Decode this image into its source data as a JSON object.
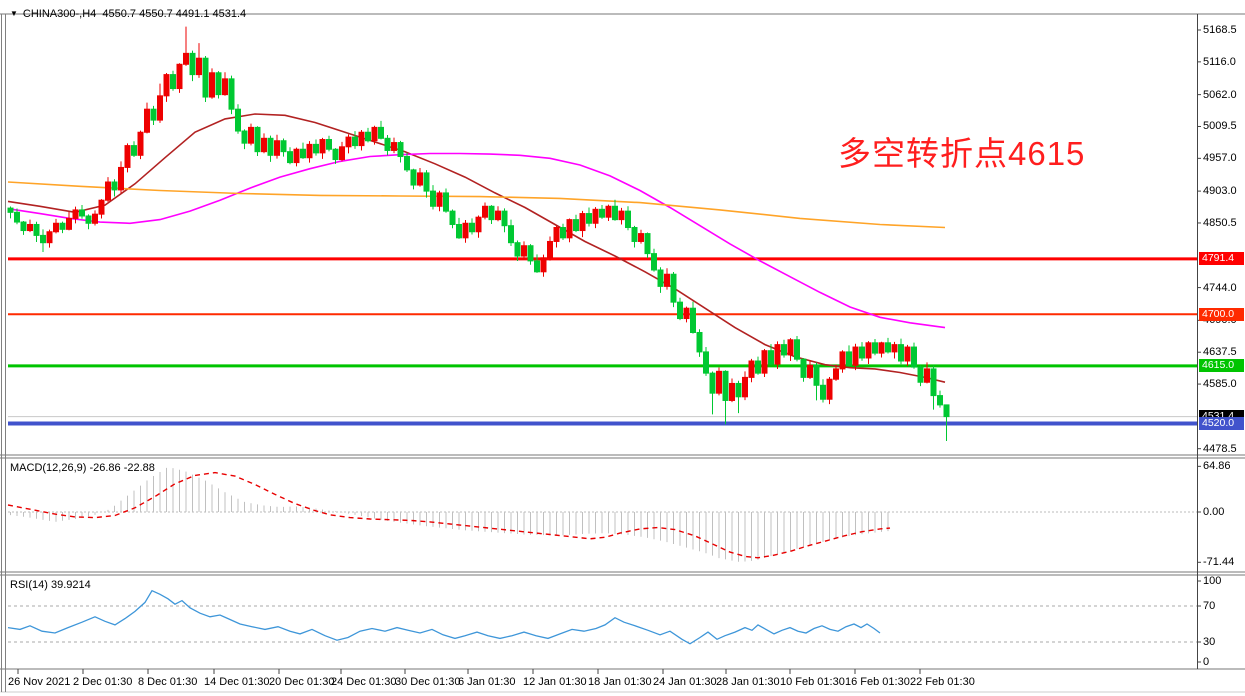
{
  "header": {
    "symbol_period": "CHINA300-,H4",
    "ohlc": "4550.7 4550.7 4491.1 4531.4",
    "dropdown_icon": "▼"
  },
  "annotation": {
    "text": "多空转折点4615",
    "color": "#FF1E1E"
  },
  "macd": {
    "label": "MACD(12,26,9) -26.86 -22.88"
  },
  "rsi": {
    "label": "RSI(14) 39.9214"
  },
  "colors": {
    "up_candle": "#EE0000",
    "down_candle": "#00C832",
    "ma_fast": "#B22222",
    "ma_mid": "#FF00FF",
    "ma_slow": "#FFA428",
    "macd_histogram": "#C0C0C0",
    "macd_signal": "#E80000",
    "rsi_line": "#3E96D9",
    "level_red": "#FF0000",
    "level_red2": "#FF2A00",
    "level_green": "#00C400",
    "level_blue": "#4153CC",
    "price_line_gray": "#C8C8C8",
    "badge_black": "#000000",
    "frame": "#777777",
    "axis_text": "#000000"
  },
  "chart_data": {
    "type": "candlestick",
    "title": "CHINA300-,H4",
    "symbol": "CHINA300-",
    "timeframe": "H4",
    "convention": "chinese (red=bullish, green=bearish)",
    "last_bar": {
      "open": 4550.7,
      "high": 4550.7,
      "low": 4491.1,
      "close": 4531.4
    },
    "first_open": 4875,
    "closes": [
      4868,
      4852,
      4838,
      4848,
      4830,
      4818,
      4836,
      4850,
      4840,
      4858,
      4872,
      4862,
      4850,
      4865,
      4888,
      4918,
      4905,
      4942,
      4978,
      4962,
      5000,
      5038,
      5020,
      5060,
      5095,
      5072,
      5112,
      5130,
      5095,
      5122,
      5058,
      5098,
      5062,
      5088,
      5038,
      5002,
      4982,
      5008,
      4968,
      4990,
      4962,
      4986,
      4968,
      4950,
      4972,
      4958,
      4980,
      4966,
      4988,
      4972,
      4955,
      4976,
      4992,
      4978,
      5000,
      4986,
      5008,
      4990,
      4970,
      4983,
      4960,
      4938,
      4913,
      4933,
      4903,
      4878,
      4900,
      4870,
      4848,
      4826,
      4850,
      4836,
      4860,
      4878,
      4856,
      4870,
      4846,
      4818,
      4796,
      4813,
      4788,
      4770,
      4793,
      4820,
      4843,
      4826,
      4856,
      4838,
      4866,
      4850,
      4873,
      4860,
      4878,
      4856,
      4870,
      4843,
      4820,
      4833,
      4800,
      4773,
      4746,
      4766,
      4720,
      4693,
      4710,
      4670,
      4638,
      4603,
      4570,
      4606,
      4558,
      4586,
      4564,
      4596,
      4623,
      4603,
      4640,
      4618,
      4650,
      4633,
      4658,
      4626,
      4596,
      4616,
      4583,
      4560,
      4593,
      4610,
      4638,
      4616,
      4646,
      4628,
      4653,
      4636,
      4653,
      4638,
      4650,
      4623,
      4646,
      4613,
      4588,
      4610,
      4566,
      4550.7
    ],
    "wick_pattern": [
      3,
      7,
      2,
      9,
      5,
      11,
      4,
      8,
      3,
      12,
      6,
      9
    ],
    "high_boost": {
      "23": 12,
      "27": 36,
      "29": 15
    },
    "low_boost": {
      "5": 10,
      "108": 25,
      "110": 32,
      "112": 16,
      "124": 14,
      "142": 15
    },
    "y_axis_ticks": [
      5168.5,
      5116.0,
      5062.0,
      5009.5,
      4957.0,
      4903.0,
      4850.5,
      4744.0,
      4690.0,
      4637.5,
      4585.0,
      4478.5
    ],
    "ylim": [
      4478.5,
      5168.5
    ],
    "x_axis_labels": [
      "26 Nov 2021",
      "2 Dec 01:30",
      "8 Dec 01:30",
      "14 Dec 01:30",
      "20 Dec 01:30",
      "24 Dec 01:30",
      "30 Dec 01:30",
      "6 Jan 01:30",
      "12 Jan 01:30",
      "18 Jan 01:30",
      "24 Jan 01:30",
      "28 Jan 01:30",
      "10 Feb 01:30",
      "16 Feb 01:30",
      "22 Feb 01:30"
    ],
    "horizontal_levels": [
      {
        "price": 4791.4,
        "label": "4791.4",
        "line_color": "#FF0000",
        "badge_color": "#FF0000",
        "width": 3
      },
      {
        "price": 4700.0,
        "label": "4700.0",
        "line_color": "#FF2A00",
        "badge_color": "#FF2A00",
        "width": 2
      },
      {
        "price": 4615.0,
        "label": "4615.0",
        "line_color": "#00C400",
        "badge_color": "#00C400",
        "width": 3
      },
      {
        "price": 4531.4,
        "label": "4531.4",
        "line_color": "#C8C8C8",
        "badge_color": "#000000",
        "width": 1
      },
      {
        "price": 4520.0,
        "label": "4520.0",
        "line_color": "#4153CC",
        "badge_color": "#4153CC",
        "width": 4
      }
    ],
    "moving_averages": [
      {
        "name": "fast-ma",
        "color": "#B22222",
        "points": [
          [
            8,
            4886
          ],
          [
            40,
            4878
          ],
          [
            75,
            4868
          ],
          [
            105,
            4880
          ],
          [
            135,
            4915
          ],
          [
            165,
            4958
          ],
          [
            195,
            5000
          ],
          [
            225,
            5022
          ],
          [
            255,
            5030
          ],
          [
            285,
            5028
          ],
          [
            315,
            5016
          ],
          [
            345,
            5000
          ],
          [
            375,
            4984
          ],
          [
            405,
            4968
          ],
          [
            435,
            4948
          ],
          [
            465,
            4926
          ],
          [
            495,
            4900
          ],
          [
            525,
            4876
          ],
          [
            555,
            4848
          ],
          [
            585,
            4820
          ],
          [
            615,
            4796
          ],
          [
            645,
            4770
          ],
          [
            675,
            4742
          ],
          [
            705,
            4710
          ],
          [
            735,
            4678
          ],
          [
            765,
            4650
          ],
          [
            795,
            4630
          ],
          [
            825,
            4617
          ],
          [
            850,
            4612
          ],
          [
            875,
            4610
          ],
          [
            900,
            4604
          ],
          [
            925,
            4596
          ],
          [
            945,
            4588
          ]
        ]
      },
      {
        "name": "mid-ma",
        "color": "#FF00FF",
        "points": [
          [
            8,
            4874
          ],
          [
            40,
            4866
          ],
          [
            70,
            4858
          ],
          [
            100,
            4852
          ],
          [
            130,
            4850
          ],
          [
            160,
            4856
          ],
          [
            190,
            4870
          ],
          [
            220,
            4888
          ],
          [
            250,
            4908
          ],
          [
            280,
            4926
          ],
          [
            310,
            4940
          ],
          [
            340,
            4952
          ],
          [
            370,
            4960
          ],
          [
            400,
            4963
          ],
          [
            430,
            4965
          ],
          [
            460,
            4965
          ],
          [
            490,
            4964
          ],
          [
            520,
            4962
          ],
          [
            550,
            4957
          ],
          [
            580,
            4946
          ],
          [
            610,
            4928
          ],
          [
            640,
            4904
          ],
          [
            670,
            4876
          ],
          [
            700,
            4846
          ],
          [
            730,
            4816
          ],
          [
            760,
            4788
          ],
          [
            790,
            4762
          ],
          [
            820,
            4736
          ],
          [
            850,
            4712
          ],
          [
            880,
            4695
          ],
          [
            910,
            4686
          ],
          [
            945,
            4678
          ]
        ]
      },
      {
        "name": "slow-ma",
        "color": "#FFA428",
        "points": [
          [
            8,
            4918
          ],
          [
            80,
            4911
          ],
          [
            160,
            4904
          ],
          [
            240,
            4899
          ],
          [
            320,
            4896
          ],
          [
            400,
            4895
          ],
          [
            480,
            4894
          ],
          [
            560,
            4891
          ],
          [
            640,
            4884
          ],
          [
            720,
            4872
          ],
          [
            800,
            4858
          ],
          [
            880,
            4848
          ],
          [
            945,
            4843
          ]
        ]
      }
    ],
    "macd": {
      "params": "12,26,9",
      "main_value": -26.86,
      "signal_value": -22.88,
      "axis_labels": [
        "64.86",
        "0.00",
        "-71.44"
      ],
      "axis_values": [
        64.86,
        0.0,
        -71.44
      ],
      "main_anchors": [
        [
          8,
          -4
        ],
        [
          30,
          -8
        ],
        [
          55,
          -14
        ],
        [
          75,
          -10
        ],
        [
          95,
          -4
        ],
        [
          110,
          4
        ],
        [
          130,
          26
        ],
        [
          150,
          48
        ],
        [
          168,
          64
        ],
        [
          185,
          58
        ],
        [
          205,
          45
        ],
        [
          225,
          28
        ],
        [
          245,
          14
        ],
        [
          265,
          9
        ],
        [
          280,
          7
        ],
        [
          295,
          8
        ],
        [
          310,
          6
        ],
        [
          325,
          3
        ],
        [
          340,
          0
        ],
        [
          355,
          -4
        ],
        [
          370,
          -8
        ],
        [
          385,
          -12
        ],
        [
          405,
          -16
        ],
        [
          425,
          -20
        ],
        [
          445,
          -23
        ],
        [
          465,
          -26
        ],
        [
          485,
          -28
        ],
        [
          505,
          -30
        ],
        [
          525,
          -32
        ],
        [
          545,
          -33
        ],
        [
          565,
          -33
        ],
        [
          585,
          -31
        ],
        [
          605,
          -30
        ],
        [
          625,
          -32
        ],
        [
          645,
          -36
        ],
        [
          665,
          -42
        ],
        [
          685,
          -50
        ],
        [
          705,
          -58
        ],
        [
          720,
          -66
        ],
        [
          740,
          -71
        ],
        [
          755,
          -69
        ],
        [
          770,
          -63
        ],
        [
          790,
          -55
        ],
        [
          810,
          -47
        ],
        [
          830,
          -40
        ],
        [
          850,
          -34
        ],
        [
          870,
          -30
        ],
        [
          890,
          -26.86
        ]
      ],
      "signal_anchors": [
        [
          8,
          10
        ],
        [
          30,
          4
        ],
        [
          55,
          -3
        ],
        [
          75,
          -7
        ],
        [
          95,
          -8
        ],
        [
          115,
          -5
        ],
        [
          135,
          6
        ],
        [
          155,
          22
        ],
        [
          175,
          40
        ],
        [
          195,
          52
        ],
        [
          215,
          56
        ],
        [
          235,
          51
        ],
        [
          255,
          39
        ],
        [
          275,
          25
        ],
        [
          295,
          12
        ],
        [
          315,
          2
        ],
        [
          330,
          -4
        ],
        [
          350,
          -8
        ],
        [
          370,
          -10
        ],
        [
          390,
          -11
        ],
        [
          410,
          -12
        ],
        [
          430,
          -14
        ],
        [
          450,
          -17
        ],
        [
          470,
          -20
        ],
        [
          490,
          -23
        ],
        [
          510,
          -26
        ],
        [
          530,
          -29
        ],
        [
          550,
          -32
        ],
        [
          570,
          -35
        ],
        [
          590,
          -38
        ],
        [
          605,
          -36
        ],
        [
          620,
          -30
        ],
        [
          640,
          -24
        ],
        [
          658,
          -22
        ],
        [
          675,
          -25
        ],
        [
          695,
          -34
        ],
        [
          715,
          -47
        ],
        [
          730,
          -57
        ],
        [
          745,
          -63
        ],
        [
          758,
          -65
        ],
        [
          772,
          -62
        ],
        [
          790,
          -56
        ],
        [
          808,
          -48
        ],
        [
          826,
          -41
        ],
        [
          844,
          -34
        ],
        [
          862,
          -28
        ],
        [
          880,
          -24
        ],
        [
          890,
          -22.88
        ]
      ]
    },
    "rsi": {
      "period": 14,
      "value": 39.9214,
      "axis_labels": [
        "100",
        "70",
        "30",
        "0"
      ],
      "axis_values": [
        100,
        70,
        30,
        0
      ],
      "levels": [
        70,
        30
      ],
      "points": [
        [
          8,
          46
        ],
        [
          20,
          44
        ],
        [
          30,
          48
        ],
        [
          42,
          42
        ],
        [
          55,
          40
        ],
        [
          68,
          46
        ],
        [
          82,
          52
        ],
        [
          95,
          58
        ],
        [
          105,
          53
        ],
        [
          115,
          49
        ],
        [
          125,
          56
        ],
        [
          135,
          64
        ],
        [
          145,
          74
        ],
        [
          152,
          87
        ],
        [
          160,
          83
        ],
        [
          168,
          78
        ],
        [
          175,
          72
        ],
        [
          182,
          76
        ],
        [
          190,
          68
        ],
        [
          200,
          62
        ],
        [
          210,
          58
        ],
        [
          220,
          60
        ],
        [
          230,
          55
        ],
        [
          240,
          50
        ],
        [
          252,
          47
        ],
        [
          265,
          44
        ],
        [
          278,
          47
        ],
        [
          290,
          42
        ],
        [
          300,
          39
        ],
        [
          312,
          44
        ],
        [
          325,
          37
        ],
        [
          337,
          32
        ],
        [
          348,
          35
        ],
        [
          360,
          42
        ],
        [
          372,
          45
        ],
        [
          385,
          42
        ],
        [
          397,
          46
        ],
        [
          408,
          43
        ],
        [
          420,
          40
        ],
        [
          432,
          44
        ],
        [
          443,
          38
        ],
        [
          455,
          34
        ],
        [
          465,
          37
        ],
        [
          477,
          41
        ],
        [
          488,
          37
        ],
        [
          500,
          34
        ],
        [
          512,
          37
        ],
        [
          524,
          41
        ],
        [
          536,
          37
        ],
        [
          548,
          34
        ],
        [
          560,
          39
        ],
        [
          572,
          44
        ],
        [
          584,
          42
        ],
        [
          596,
          45
        ],
        [
          605,
          49
        ],
        [
          615,
          57
        ],
        [
          624,
          52
        ],
        [
          635,
          48
        ],
        [
          648,
          43
        ],
        [
          660,
          38
        ],
        [
          670,
          42
        ],
        [
          682,
          33
        ],
        [
          690,
          28
        ],
        [
          700,
          35
        ],
        [
          708,
          41
        ],
        [
          717,
          33
        ],
        [
          725,
          37
        ],
        [
          735,
          41
        ],
        [
          745,
          46
        ],
        [
          752,
          43
        ],
        [
          758,
          49
        ],
        [
          766,
          44
        ],
        [
          774,
          39
        ],
        [
          782,
          43
        ],
        [
          790,
          46
        ],
        [
          798,
          42
        ],
        [
          806,
          40
        ],
        [
          814,
          45
        ],
        [
          822,
          48
        ],
        [
          830,
          44
        ],
        [
          838,
          42
        ],
        [
          846,
          47
        ],
        [
          854,
          50
        ],
        [
          861,
          46
        ],
        [
          867,
          50
        ],
        [
          874,
          45
        ],
        [
          880,
          40
        ]
      ]
    }
  }
}
